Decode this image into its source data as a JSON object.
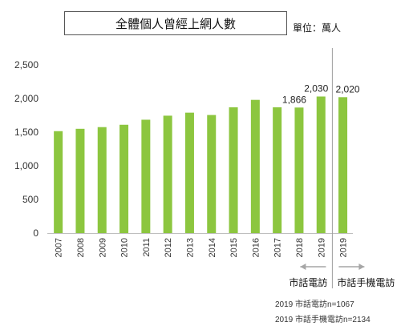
{
  "chart_data": {
    "type": "bar",
    "title": "全體個人曾經上網人數",
    "unit_label": "單位：萬人",
    "categories": [
      "2007",
      "2008",
      "2009",
      "2010",
      "2011",
      "2012",
      "2013",
      "2014",
      "2015",
      "2016",
      "2017",
      "2018",
      "2019",
      "2019"
    ],
    "values": [
      1515,
      1550,
      1575,
      1610,
      1685,
      1745,
      1790,
      1755,
      1870,
      1980,
      1870,
      1866,
      2030,
      2020
    ],
    "data_labels": [
      {
        "index": 11,
        "text": "1,866"
      },
      {
        "index": 12,
        "text": "2,030"
      },
      {
        "index": 13,
        "text": "2,020"
      }
    ],
    "yticks": [
      "0",
      "500",
      "1,000",
      "1,500",
      "2,000",
      "2,500"
    ],
    "ylim": [
      0,
      2500
    ],
    "bar_color": "#8cc63f",
    "grid": false,
    "annotations": {
      "method_left": "市話電訪",
      "method_right": "市話手機電訪",
      "note_1": "2019 市話電訪n=1067",
      "note_2": "2019 市話手機電訪n=2134"
    }
  }
}
